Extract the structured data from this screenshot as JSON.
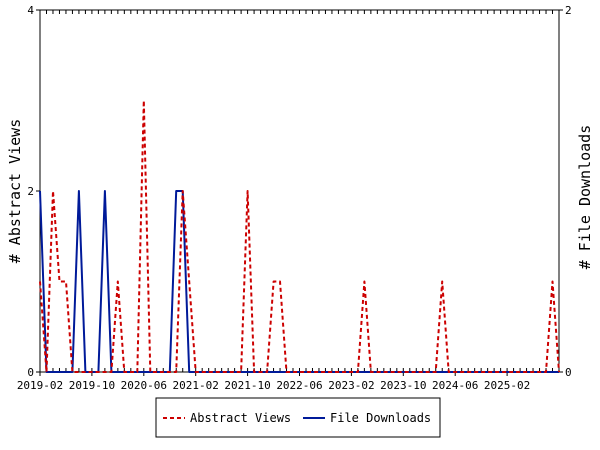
{
  "chart_data": {
    "type": "line",
    "title": "",
    "ylabel_left": "# Abstract Views",
    "ylabel_right": "# File Downloads",
    "ylim_left": [
      0,
      4
    ],
    "ylim_right": [
      0,
      2
    ],
    "yticks_left": [
      0,
      2,
      4
    ],
    "yticks_right": [
      0,
      2
    ],
    "xlim": [
      0,
      80
    ],
    "xticks": [
      {
        "i": 0,
        "label": "2019-02"
      },
      {
        "i": 8,
        "label": "2019-10"
      },
      {
        "i": 16,
        "label": "2020-06"
      },
      {
        "i": 24,
        "label": "2021-02"
      },
      {
        "i": 32,
        "label": "2021-10"
      },
      {
        "i": 40,
        "label": "2022-06"
      },
      {
        "i": 48,
        "label": "2023-02"
      },
      {
        "i": 56,
        "label": "2023-10"
      },
      {
        "i": 64,
        "label": "2024-06"
      },
      {
        "i": 72,
        "label": "2025-02"
      }
    ],
    "series": [
      {
        "name": "Abstract Views",
        "axis": "left",
        "color": "#cc0000",
        "dash": true,
        "x": [
          0,
          1,
          2,
          3,
          4,
          5,
          6,
          7,
          8,
          9,
          10,
          11,
          12,
          13,
          14,
          15,
          16,
          17,
          18,
          19,
          20,
          21,
          22,
          23,
          24,
          25,
          26,
          27,
          28,
          29,
          30,
          31,
          32,
          33,
          34,
          35,
          36,
          37,
          38,
          39,
          40,
          41,
          42,
          43,
          44,
          45,
          46,
          47,
          48,
          49,
          50,
          51,
          52,
          53,
          54,
          55,
          56,
          57,
          58,
          59,
          60,
          61,
          62,
          63,
          64,
          65,
          66,
          67,
          68,
          69,
          70,
          71,
          72,
          73,
          74,
          75,
          76,
          77,
          78,
          79,
          80
        ],
        "values": [
          1,
          0,
          2,
          1,
          1,
          0,
          0,
          0,
          0,
          0,
          0,
          0,
          1,
          0,
          0,
          0,
          3,
          0,
          0,
          0,
          0,
          0,
          2,
          1,
          0,
          0,
          0,
          0,
          0,
          0,
          0,
          0,
          2,
          0,
          0,
          0,
          1,
          1,
          0,
          0,
          0,
          0,
          0,
          0,
          0,
          0,
          0,
          0,
          0,
          0,
          1,
          0,
          0,
          0,
          0,
          0,
          0,
          0,
          0,
          0,
          0,
          0,
          1,
          0,
          0,
          0,
          0,
          0,
          0,
          0,
          0,
          0,
          0,
          0,
          0,
          0,
          0,
          0,
          0,
          1,
          0
        ]
      },
      {
        "name": "File Downloads",
        "axis": "right",
        "color": "#001a99",
        "dash": false,
        "x": [
          0,
          1,
          2,
          3,
          4,
          5,
          6,
          7,
          8,
          9,
          10,
          11,
          12,
          13,
          14,
          15,
          16,
          17,
          18,
          19,
          20,
          21,
          22,
          23,
          24,
          25,
          26,
          27,
          28,
          29,
          30,
          31,
          32,
          33,
          34,
          35,
          36,
          37,
          38,
          39,
          40,
          41,
          42,
          43,
          44,
          45,
          46,
          47,
          48,
          49,
          50,
          51,
          52,
          53,
          54,
          55,
          56,
          57,
          58,
          59,
          60,
          61,
          62,
          63,
          64,
          65,
          66,
          67,
          68,
          69,
          70,
          71,
          72,
          73,
          74,
          75,
          76,
          77,
          78,
          79,
          80
        ],
        "values": [
          1,
          0,
          0,
          0,
          0,
          0,
          1,
          0,
          0,
          0,
          1,
          0,
          0,
          0,
          0,
          0,
          0,
          0,
          0,
          0,
          0,
          1,
          1,
          0,
          0,
          0,
          0,
          0,
          0,
          0,
          0,
          0,
          0,
          0,
          0,
          0,
          0,
          0,
          0,
          0,
          0,
          0,
          0,
          0,
          0,
          0,
          0,
          0,
          0,
          0,
          0,
          0,
          0,
          0,
          0,
          0,
          0,
          0,
          0,
          0,
          0,
          0,
          0,
          0,
          0,
          0,
          0,
          0,
          0,
          0,
          0,
          0,
          0,
          0,
          0,
          0,
          0,
          0,
          0,
          0,
          0
        ]
      }
    ],
    "legend": {
      "placement": "bottom",
      "items": [
        {
          "label": "Abstract Views",
          "color": "#cc0000",
          "dash": true
        },
        {
          "label": "File Downloads",
          "color": "#001a99",
          "dash": false
        }
      ]
    }
  }
}
